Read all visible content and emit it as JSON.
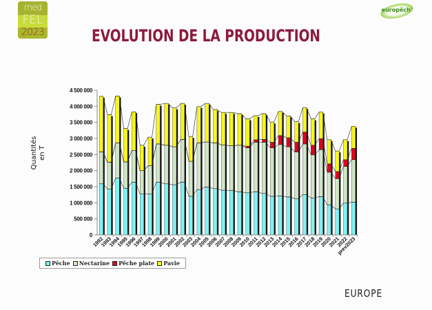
{
  "header": {
    "logo_left": {
      "line1": "med",
      "line2": "FEL",
      "line3": "2023"
    },
    "logo_right": "europêch'",
    "title": "EVOLUTION DE LA PRODUCTION"
  },
  "footer": {
    "region_label": "EUROPE"
  },
  "colors": {
    "peche": "#7ff2f2",
    "nectarine": "#cfe6c4",
    "peche_plate": "#e3001b",
    "pavie": "#f9f716",
    "title": "#8b1b3b"
  },
  "chart_data": {
    "type": "bar",
    "stacked": true,
    "title": "",
    "xlabel": "",
    "ylabel": "Quantités en T",
    "ylabel_lines": [
      "Quantités",
      "en T"
    ],
    "ylim": [
      0,
      4500000
    ],
    "yticks": [
      0,
      500000,
      1000000,
      1500000,
      2000000,
      2500000,
      3000000,
      3500000,
      4000000,
      4500000
    ],
    "ytick_labels": [
      "0",
      "500 000",
      "1 000 000",
      "1 500 000",
      "2 000 000",
      "2 500 000",
      "3 000 000",
      "3 500 000",
      "4 000 000",
      "4 500 000"
    ],
    "grid": false,
    "legend_position": "bottom-left",
    "categories": [
      "1992",
      "1993",
      "1994",
      "1995",
      "1996",
      "1997",
      "1998",
      "1999",
      "2000",
      "2001",
      "2002",
      "2003",
      "2004",
      "2005",
      "2006",
      "2007",
      "2008",
      "2009",
      "2010",
      "2011",
      "2012",
      "2013",
      "2014",
      "2015",
      "2016",
      "2017",
      "2018",
      "2019",
      "2020",
      "2021",
      "2022",
      "prev2023"
    ],
    "series": [
      {
        "name": "Pêche",
        "color_key": "peche",
        "values": [
          1590000,
          1430000,
          1770000,
          1450000,
          1640000,
          1270000,
          1270000,
          1640000,
          1590000,
          1560000,
          1640000,
          1200000,
          1410000,
          1490000,
          1440000,
          1390000,
          1380000,
          1340000,
          1310000,
          1340000,
          1290000,
          1200000,
          1210000,
          1180000,
          1130000,
          1250000,
          1150000,
          1190000,
          930000,
          810000,
          990000,
          1020000
        ]
      },
      {
        "name": "Nectarine",
        "color_key": "nectarine",
        "values": [
          990000,
          830000,
          1090000,
          820000,
          990000,
          730000,
          880000,
          1190000,
          1200000,
          1180000,
          1330000,
          1090000,
          1450000,
          1400000,
          1420000,
          1410000,
          1390000,
          1450000,
          1400000,
          1540000,
          1590000,
          1510000,
          1600000,
          1560000,
          1450000,
          1580000,
          1340000,
          1460000,
          1020000,
          940000,
          1140000,
          1320000
        ]
      },
      {
        "name": "Pêche plate",
        "color_key": "peche_plate",
        "values": [
          0,
          0,
          0,
          0,
          0,
          0,
          0,
          0,
          0,
          0,
          0,
          0,
          0,
          0,
          0,
          0,
          0,
          0,
          50000,
          80000,
          90000,
          170000,
          280000,
          280000,
          300000,
          370000,
          300000,
          340000,
          260000,
          220000,
          210000,
          350000
        ]
      },
      {
        "name": "Pavie",
        "color_key": "pavie",
        "values": [
          1730000,
          1480000,
          1460000,
          1040000,
          1200000,
          790000,
          890000,
          1230000,
          1300000,
          1210000,
          1120000,
          770000,
          1130000,
          1200000,
          1040000,
          1010000,
          1040000,
          980000,
          850000,
          750000,
          800000,
          630000,
          750000,
          680000,
          640000,
          760000,
          820000,
          830000,
          750000,
          640000,
          620000,
          690000
        ]
      }
    ]
  }
}
